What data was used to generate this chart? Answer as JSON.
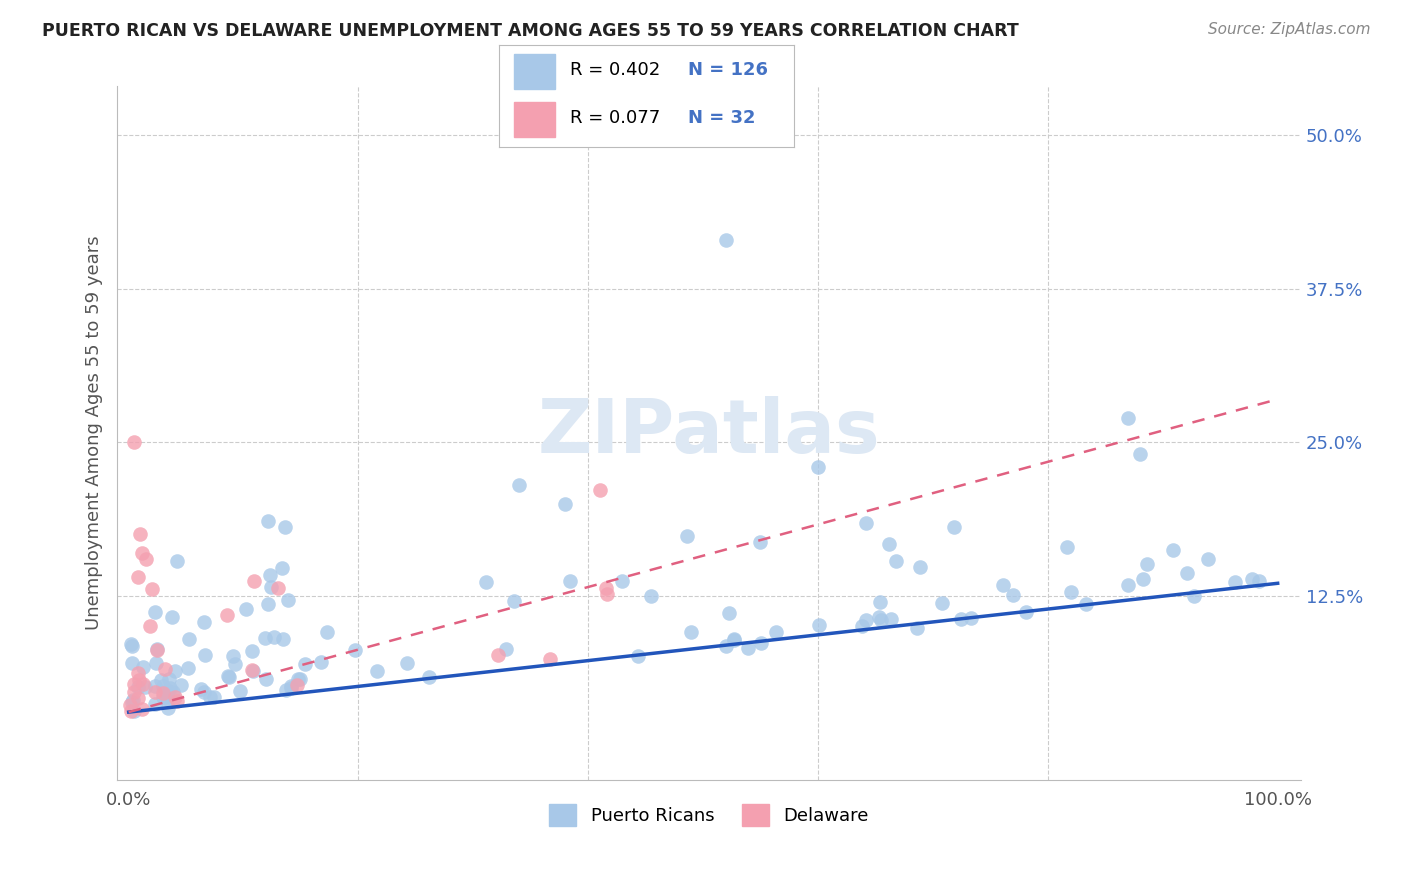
{
  "title": "PUERTO RICAN VS DELAWARE UNEMPLOYMENT AMONG AGES 55 TO 59 YEARS CORRELATION CHART",
  "source": "Source: ZipAtlas.com",
  "ylabel": "Unemployment Among Ages 55 to 59 years",
  "xlim": [
    0.0,
    1.02
  ],
  "ylim": [
    -0.025,
    0.54
  ],
  "pr_R": 0.402,
  "pr_N": 126,
  "de_R": 0.077,
  "de_N": 32,
  "pr_color": "#a8c8e8",
  "de_color": "#f4a0b0",
  "pr_line_color": "#2255bb",
  "de_line_color": "#e06080",
  "watermark": "ZIPatlas",
  "legend_color": "#4472c4",
  "title_color": "#222222",
  "source_color": "#888888",
  "grid_color": "#cccccc",
  "axis_label_color": "#555555",
  "ytick_color": "#4472c4"
}
